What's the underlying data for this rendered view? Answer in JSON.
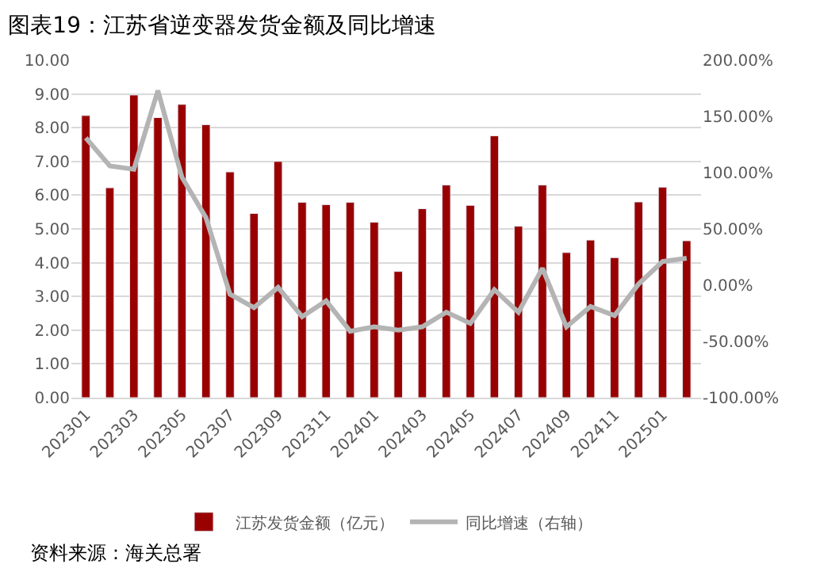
{
  "chart_data": {
    "type": "bar",
    "title": "图表19：江苏省逆变器发货金额及同比增速",
    "categories": [
      "202301",
      null,
      "202303",
      null,
      "202305",
      null,
      "202307",
      null,
      "202309",
      null,
      "202311",
      null,
      "202401",
      null,
      "202403",
      null,
      "202405",
      null,
      "202407",
      null,
      "202409",
      null,
      "202411",
      null,
      "202501",
      null
    ],
    "series": [
      {
        "name": "江苏发货金额（亿元）",
        "color": "#990000",
        "values": [
          8.36,
          6.22,
          8.97,
          8.3,
          8.69,
          8.09,
          6.69,
          5.46,
          7.0,
          5.79,
          5.72,
          5.79,
          5.2,
          3.74,
          5.6,
          6.3,
          5.7,
          7.76,
          5.08,
          6.3,
          4.3,
          4.67,
          4.15,
          5.8,
          6.24,
          4.65
        ]
      },
      {
        "name": "同比增速（右轴）",
        "type": "line",
        "axis": "y2",
        "color": "#b4b4b4",
        "values": [
          131,
          106,
          103,
          173,
          96,
          60,
          -8,
          -20,
          -2,
          -28,
          -14,
          -41,
          -37,
          -40,
          -37,
          -24,
          -34,
          -4,
          -24,
          15,
          -37,
          -19,
          -27,
          1,
          21,
          24
        ]
      }
    ],
    "ylim": [
      0,
      10
    ],
    "yticks": [
      {
        "value": 0,
        "label": "0.00"
      },
      {
        "value": 1,
        "label": "1.00"
      },
      {
        "value": 2,
        "label": "2.00"
      },
      {
        "value": 3,
        "label": "3.00"
      },
      {
        "value": 4,
        "label": "4.00"
      },
      {
        "value": 5,
        "label": "5.00"
      },
      {
        "value": 6,
        "label": "6.00"
      },
      {
        "value": 7,
        "label": "7.00"
      },
      {
        "value": 8,
        "label": "8.00"
      },
      {
        "value": 9,
        "label": "9.00"
      },
      {
        "value": 10,
        "label": "10.00"
      }
    ],
    "y2lim": [
      -100,
      200
    ],
    "y2ticks": [
      {
        "value": -100,
        "label": "-100.00%"
      },
      {
        "value": -50,
        "label": "-50.00%"
      },
      {
        "value": 0,
        "label": "0.00%"
      },
      {
        "value": 50,
        "label": "50.00%"
      },
      {
        "value": 100,
        "label": "100.00%"
      },
      {
        "value": 150,
        "label": "150.00%"
      },
      {
        "value": 200,
        "label": "200.00%"
      }
    ],
    "grid": "y",
    "legend": "bottom",
    "marker": "none",
    "line_style": "solid",
    "annotations": [
      "资料来源：海关总署"
    ]
  }
}
